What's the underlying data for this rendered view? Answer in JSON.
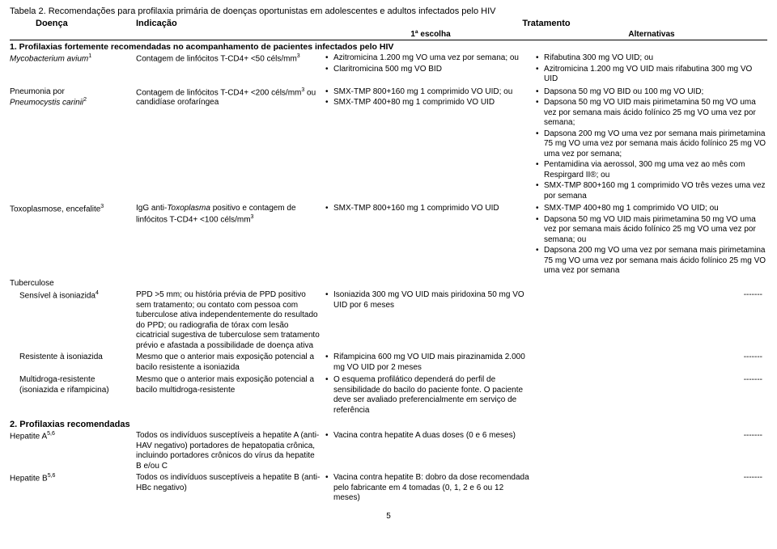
{
  "title": "Tabela 2. Recomendações para profilaxia primária de doenças oportunistas em adolescentes e adultos infectados pelo HIV",
  "headers": {
    "doenca": "Doença",
    "indicacao": "Indicação",
    "tratamento": "Tratamento",
    "primeira": "1ª escolha",
    "alternativas": "Alternativas"
  },
  "section1_title": "1. Profilaxias fortemente recomendadas no acompanhamento de pacientes infectados pelo HIV",
  "section2_title": "2. Profilaxias recomendadas",
  "rows": [
    {
      "doenca_italic": "Mycobacterium avium",
      "doenca_sup": "1",
      "indicacao": "Contagem de linfócitos T-CD4+ <50 céls/mm",
      "indicacao_sup": "3",
      "primeira": [
        "Azitromicina 1.200 mg VO uma vez por semana; ou",
        "Claritromicina 500 mg VO BID"
      ],
      "alt": [
        "Rifabutina 300 mg VO UID; ou",
        "Azitromicina 1.200 mg VO UID mais rifabutina 300 mg VO UID"
      ]
    },
    {
      "doenca_line1": "Pneumonia por",
      "doenca_italic": "Pneumocystis carinii",
      "doenca_sup": "2",
      "indicacao": "Contagem de linfócitos T-CD4+ <200 céls/mm³ ou candidíase orofaríngea",
      "indicacao_sup_inline": "3",
      "primeira": [
        "SMX-TMP 800+160 mg 1 comprimido VO UID; ou",
        "SMX-TMP 400+80 mg 1 comprimido VO UID"
      ],
      "alt": [
        "Dapsona 50 mg VO BID ou 100 mg VO UID;",
        "Dapsona 50 mg VO UID mais pirimetamina 50 mg VO uma vez por semana mais ácido folínico 25 mg VO uma vez por semana;",
        "Dapsona 200 mg VO uma vez por semana mais pirimetamina 75 mg VO uma vez por semana mais ácido folínico 25 mg VO uma vez por semana;",
        "Pentamidina via aerossol, 300 mg uma vez ao mês com Respirgard II®; ou",
        "SMX-TMP 800+160 mg 1 comprimido VO três vezes uma vez por semana"
      ]
    },
    {
      "doenca": "Toxoplasmose, encefalite",
      "doenca_sup": "3",
      "indicacao_html": "IgG anti-<i>Toxoplasma</i> positivo e contagem de linfócitos T-CD4+ <100 céls/mm",
      "indicacao_sup": "3",
      "primeira": [
        "SMX-TMP 800+160 mg 1 comprimido VO UID"
      ],
      "alt": [
        "SMX-TMP 400+80 mg 1 comprimido VO UID; ou",
        "Dapsona 50 mg VO UID mais pirimetamina 50 mg VO uma vez por semana mais ácido folínico 25 mg VO uma vez por semana; ou",
        "Dapsona 200 mg VO uma vez por semana mais pirimetamina 75 mg VO uma vez por semana mais ácido folínico 25 mg VO uma vez por semana"
      ]
    },
    {
      "doenca": "Tuberculose",
      "is_group": true
    },
    {
      "doenca_indent": "Sensível à isoniazida",
      "doenca_sup": "4",
      "indicacao": "PPD >5 mm; ou história prévia de PPD positivo sem tratamento; ou contato com pessoa com tuberculose ativa independentemente do resultado do PPD; ou radiografia de tórax com lesão cicatricial sugestiva de tuberculose sem tratamento prévio e afastada a possibilidade de doença ativa",
      "primeira": [
        "Isoniazida 300 mg VO UID mais piridoxina 50 mg VO UID por 6 meses"
      ],
      "alt_dash": "-------"
    },
    {
      "doenca_indent": "Resistente à isoniazida",
      "indicacao": "Mesmo que o anterior mais exposição potencial a bacilo resistente a isoniazida",
      "primeira": [
        "Rifampicina 600 mg VO UID mais pirazinamida 2.000 mg VO UID por 2 meses"
      ],
      "alt_dash": "-------"
    },
    {
      "doenca_indent": "Multidroga-resistente (isoniazida e rifampicina)",
      "indicacao": "Mesmo que o anterior mais exposição potencial a bacilo multidroga-resistente",
      "primeira": [
        "O esquema profilático dependerá do perfil de sensibilidade do bacilo do paciente fonte. O paciente deve ser avaliado preferencialmente em serviço de referência"
      ],
      "alt_dash": "-------"
    }
  ],
  "section2_rows": [
    {
      "doenca": "Hepatite A",
      "doenca_sup": "5,6",
      "indicacao": "Todos os indivíduos susceptíveis a hepatite A (anti-HAV negativo) portadores de hepatopatia crônica, incluindo portadores crônicos do vírus da hepatite B e/ou C",
      "primeira": [
        "Vacina contra hepatite A duas doses (0 e 6 meses)"
      ],
      "alt_dash": "-------"
    },
    {
      "doenca": "Hepatite B",
      "doenca_sup": "5,6",
      "indicacao": "Todos os indivíduos susceptíveis a hepatite B (anti-HBc negativo)",
      "primeira": [
        "Vacina contra hepatite B: dobro da dose recomendada pelo fabricante em 4 tomadas (0, 1, 2 e 6 ou 12 meses)"
      ],
      "alt_dash": "-------"
    }
  ],
  "page_num": "5"
}
